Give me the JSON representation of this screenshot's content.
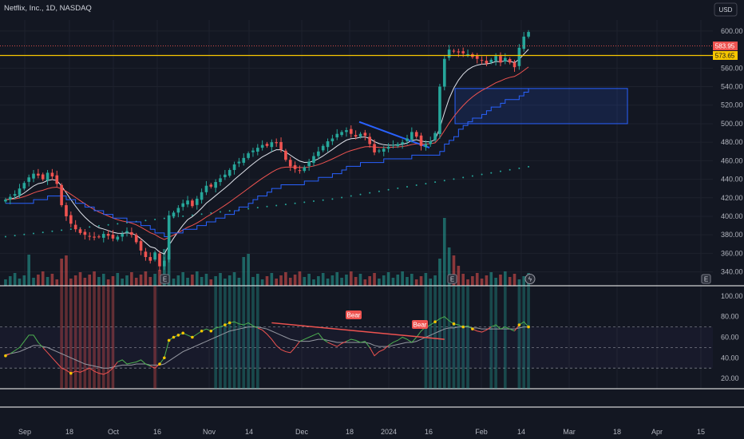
{
  "header": {
    "title": "Netflix, Inc., 1D, NASDAQ",
    "currency": "USD"
  },
  "colors": {
    "bg": "#131722",
    "up": "#26a69a",
    "down": "#ef5350",
    "grid": "#1e222d",
    "ema_fast": "#e0e3eb",
    "ema_slow": "#ef5350",
    "stair": "#2962ff",
    "sma_long": "#26a69a",
    "hline": "#f7c600",
    "box": "#2962ff",
    "trendline": "#2962ff",
    "rsi": "#4caf50",
    "rsi_ma": "#9598a1",
    "rsi_res": "#ef5350",
    "marker": "#f7c600"
  },
  "price_labels": {
    "last": "583.95",
    "level": "573.65"
  },
  "indicator_labels": {
    "bear1": "Bear",
    "bear2": "Bear"
  },
  "icons": [
    "earnings-icon-oct",
    "earnings-icon-jan",
    "lightning-icon",
    "earnings-icon-future"
  ],
  "chart_data": [
    {
      "type": "candlestick",
      "title": "Netflix, Inc., 1D, NASDAQ",
      "ylim": [
        325,
        612
      ],
      "y_ticks": [
        340,
        360,
        380,
        400,
        420,
        440,
        460,
        480,
        500,
        520,
        540,
        560,
        600
      ],
      "x_ticks": [
        "Sep",
        "18",
        "Oct",
        "16",
        "Nov",
        "14",
        "Dec",
        "18",
        "2024",
        "16",
        "Feb",
        "14",
        "Mar",
        "18",
        "Apr",
        "15"
      ],
      "closes": [
        418,
        421,
        424,
        430,
        436,
        442,
        446,
        444,
        440,
        447,
        443,
        435,
        412,
        400,
        392,
        386,
        382,
        380,
        378,
        377,
        378,
        381,
        379,
        376,
        378,
        381,
        384,
        380,
        372,
        363,
        356,
        352,
        361,
        346,
        352,
        401,
        404,
        409,
        414,
        417,
        411,
        419,
        426,
        433,
        432,
        437,
        441,
        445,
        450,
        456,
        459,
        463,
        468,
        471,
        474,
        477,
        476,
        480,
        479,
        472,
        461,
        454,
        451,
        449,
        453,
        459,
        465,
        470,
        476,
        481,
        484,
        489,
        491,
        493,
        489,
        486,
        489,
        487,
        478,
        469,
        471,
        473,
        475,
        477,
        478,
        480,
        484,
        491,
        486,
        476,
        478,
        481,
        490,
        540,
        570,
        580,
        578,
        577,
        576,
        575,
        572,
        570,
        568,
        565,
        569,
        573,
        566,
        571,
        566,
        561,
        582,
        594,
        599
      ],
      "volume_max_label": "",
      "levels": {
        "hline": 573.65,
        "last": 583.95
      },
      "box": {
        "from_index": 99,
        "to_index_offset": 30,
        "low": 500,
        "high": 538
      }
    },
    {
      "type": "line",
      "title": "",
      "ylim": [
        10,
        110
      ],
      "y_ticks": [
        20,
        40,
        60,
        80,
        100
      ],
      "bands": [
        30,
        50,
        70
      ],
      "series": [
        {
          "values": [
            42,
            44,
            47,
            50,
            56,
            62,
            62,
            55,
            50,
            45,
            40,
            35,
            30,
            28,
            25,
            27,
            26,
            28,
            30,
            27,
            25,
            24,
            26,
            30,
            36,
            38,
            34,
            35,
            36,
            38,
            34,
            32,
            30,
            34,
            40,
            57,
            60,
            62,
            64,
            62,
            60,
            63,
            66,
            68,
            66,
            69,
            70,
            72,
            74,
            75,
            73,
            72,
            74,
            71,
            69,
            67,
            63,
            58,
            52,
            48,
            46,
            45,
            50,
            56,
            58,
            60,
            62,
            64,
            58,
            55,
            53,
            51,
            54,
            56,
            58,
            57,
            55,
            56,
            50,
            42,
            46,
            48,
            52,
            55,
            57,
            60,
            58,
            55,
            60,
            66,
            70,
            72,
            75,
            78,
            80,
            76,
            73,
            72,
            70,
            71,
            68,
            66,
            65,
            67,
            70,
            72,
            68,
            70,
            68,
            66,
            72,
            75,
            70
          ]
        },
        {
          "values": [
            43,
            44,
            45,
            46,
            48,
            50,
            52,
            52,
            51,
            50,
            48,
            46,
            44,
            42,
            40,
            38,
            36,
            34,
            33,
            32,
            31,
            30,
            30,
            31,
            32,
            33,
            33,
            33,
            34,
            34,
            34,
            33,
            33,
            33,
            34,
            37,
            40,
            43,
            46,
            48,
            50,
            52,
            54,
            56,
            58,
            60,
            62,
            64,
            66,
            67,
            68,
            69,
            70,
            70,
            70,
            69,
            68,
            66,
            64,
            62,
            60,
            58,
            57,
            56,
            56,
            56,
            57,
            58,
            58,
            57,
            56,
            55,
            55,
            55,
            55,
            55,
            55,
            55,
            54,
            52,
            51,
            51,
            51,
            52,
            53,
            54,
            55,
            55,
            56,
            58,
            60,
            62,
            64,
            66,
            68,
            69,
            69,
            70,
            70,
            70,
            69,
            69,
            68,
            68,
            68,
            68,
            68,
            68,
            68,
            68,
            69,
            70,
            70
          ]
        }
      ]
    }
  ]
}
